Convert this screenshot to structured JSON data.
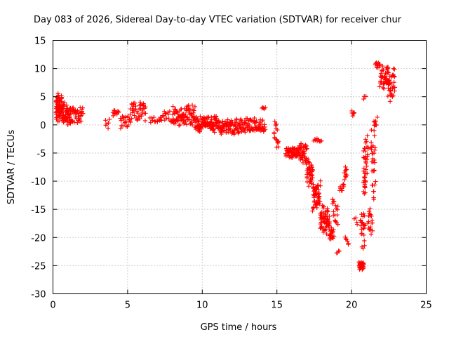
{
  "chart_data": {
    "type": "scatter",
    "title": "Day 083 of 2026, Sidereal Day-to-day VTEC variation (SDTVAR) for receiver chur",
    "xlabel": "GPS time / hours",
    "ylabel": "SDTVAR / TECUs",
    "xlim": [
      0,
      25
    ],
    "ylim": [
      -30,
      15
    ],
    "x_ticks": [
      "0",
      "5",
      "10",
      "15",
      "20",
      "25"
    ],
    "y_ticks": [
      "15",
      "10",
      "5",
      "0",
      "-5",
      "-10",
      "-15",
      "-20",
      "-25",
      "-30"
    ],
    "grid": true,
    "marker": "+",
    "series": [
      {
        "name": "SDTVAR",
        "color": "#ff0000",
        "segments": [
          {
            "x_start": 0.2,
            "x_end": 0.6,
            "y_center": 3.0,
            "y_spread": 2.8,
            "count": 70
          },
          {
            "x_start": 0.6,
            "x_end": 1.2,
            "y_center": 2.0,
            "y_spread": 2.2,
            "count": 60
          },
          {
            "x_start": 1.2,
            "x_end": 2.0,
            "y_center": 1.8,
            "y_spread": 1.6,
            "count": 40
          },
          {
            "x_start": 3.5,
            "x_end": 3.8,
            "y_center": 0.5,
            "y_spread": 1.8,
            "count": 6
          },
          {
            "x_start": 4.0,
            "x_end": 4.4,
            "y_center": 2.3,
            "y_spread": 1.0,
            "count": 12
          },
          {
            "x_start": 4.5,
            "x_end": 5.2,
            "y_center": 0.6,
            "y_spread": 1.6,
            "count": 22
          },
          {
            "x_start": 5.2,
            "x_end": 6.2,
            "y_center": 2.2,
            "y_spread": 2.2,
            "count": 45
          },
          {
            "x_start": 6.5,
            "x_end": 7.2,
            "y_center": 0.8,
            "y_spread": 0.8,
            "count": 12
          },
          {
            "x_start": 7.2,
            "x_end": 8.0,
            "y_center": 1.4,
            "y_spread": 1.2,
            "count": 18
          },
          {
            "x_start": 8.0,
            "x_end": 9.5,
            "y_center": 1.6,
            "y_spread": 2.0,
            "count": 90
          },
          {
            "x_start": 9.5,
            "x_end": 11.0,
            "y_center": 0.2,
            "y_spread": 1.6,
            "count": 110
          },
          {
            "x_start": 11.0,
            "x_end": 12.5,
            "y_center": -0.3,
            "y_spread": 1.5,
            "count": 90
          },
          {
            "x_start": 12.5,
            "x_end": 14.2,
            "y_center": 0.0,
            "y_spread": 1.4,
            "count": 80
          },
          {
            "x_start": 14.0,
            "x_end": 14.2,
            "y_center": 3.0,
            "y_spread": 0.4,
            "count": 5
          },
          {
            "x_start": 14.8,
            "x_end": 15.0,
            "y_center": -1.0,
            "y_spread": 2.0,
            "count": 12
          },
          {
            "x_start": 15.0,
            "x_end": 15.1,
            "y_center": -3.5,
            "y_spread": 1.0,
            "count": 6
          },
          {
            "x_start": 15.6,
            "x_end": 16.5,
            "y_center": -4.8,
            "y_spread": 1.2,
            "count": 60
          },
          {
            "x_start": 16.5,
            "x_end": 17.0,
            "y_center": -5.0,
            "y_spread": 2.2,
            "count": 40
          },
          {
            "x_start": 17.0,
            "x_end": 17.4,
            "y_center": -8.5,
            "y_spread": 2.5,
            "count": 40
          },
          {
            "x_start": 17.4,
            "x_end": 17.9,
            "y_center": -12.5,
            "y_spread": 3.0,
            "count": 55
          },
          {
            "x_start": 17.9,
            "x_end": 18.5,
            "y_center": -17.0,
            "y_spread": 3.0,
            "count": 60
          },
          {
            "x_start": 18.5,
            "x_end": 18.8,
            "y_center": -19.5,
            "y_spread": 1.5,
            "count": 20
          },
          {
            "x_start": 17.5,
            "x_end": 18.0,
            "y_center": -2.8,
            "y_spread": 0.6,
            "count": 10
          },
          {
            "x_start": 18.7,
            "x_end": 19.1,
            "y_center": -15.5,
            "y_spread": 3.0,
            "count": 18
          },
          {
            "x_start": 19.0,
            "x_end": 19.2,
            "y_center": -22.5,
            "y_spread": 0.6,
            "count": 4
          },
          {
            "x_start": 19.2,
            "x_end": 19.5,
            "y_center": -11.0,
            "y_spread": 0.8,
            "count": 10
          },
          {
            "x_start": 19.5,
            "x_end": 19.7,
            "y_center": -8.5,
            "y_spread": 1.4,
            "count": 10
          },
          {
            "x_start": 19.6,
            "x_end": 19.8,
            "y_center": -20.5,
            "y_spread": 0.8,
            "count": 6
          },
          {
            "x_start": 20.0,
            "x_end": 20.2,
            "y_center": 2.2,
            "y_spread": 1.0,
            "count": 6
          },
          {
            "x_start": 20.2,
            "x_end": 20.4,
            "y_center": -17.0,
            "y_spread": 0.8,
            "count": 4
          },
          {
            "x_start": 20.5,
            "x_end": 20.8,
            "y_center": -25.0,
            "y_spread": 0.8,
            "count": 35
          },
          {
            "x_start": 20.6,
            "x_end": 20.9,
            "y_center": -19.0,
            "y_spread": 4.0,
            "count": 25
          },
          {
            "x_start": 20.8,
            "x_end": 20.95,
            "y_center": -8.0,
            "y_spread": 6.0,
            "count": 25
          },
          {
            "x_start": 20.9,
            "x_end": 21.1,
            "y_center": -5.0,
            "y_spread": 4.0,
            "count": 20
          },
          {
            "x_start": 20.8,
            "x_end": 20.95,
            "y_center": 4.8,
            "y_spread": 0.4,
            "count": 3
          },
          {
            "x_start": 21.1,
            "x_end": 21.4,
            "y_center": -17.0,
            "y_spread": 2.5,
            "count": 20
          },
          {
            "x_start": 21.3,
            "x_end": 21.6,
            "y_center": -7.0,
            "y_spread": 7.0,
            "count": 30
          },
          {
            "x_start": 21.5,
            "x_end": 21.7,
            "y_center": 0.5,
            "y_spread": 1.5,
            "count": 8
          },
          {
            "x_start": 21.6,
            "x_end": 21.9,
            "y_center": 10.5,
            "y_spread": 0.6,
            "count": 12
          },
          {
            "x_start": 21.9,
            "x_end": 22.5,
            "y_center": 8.5,
            "y_spread": 2.5,
            "count": 40
          },
          {
            "x_start": 22.4,
            "x_end": 22.9,
            "y_center": 7.0,
            "y_spread": 3.5,
            "count": 40
          }
        ]
      }
    ]
  }
}
